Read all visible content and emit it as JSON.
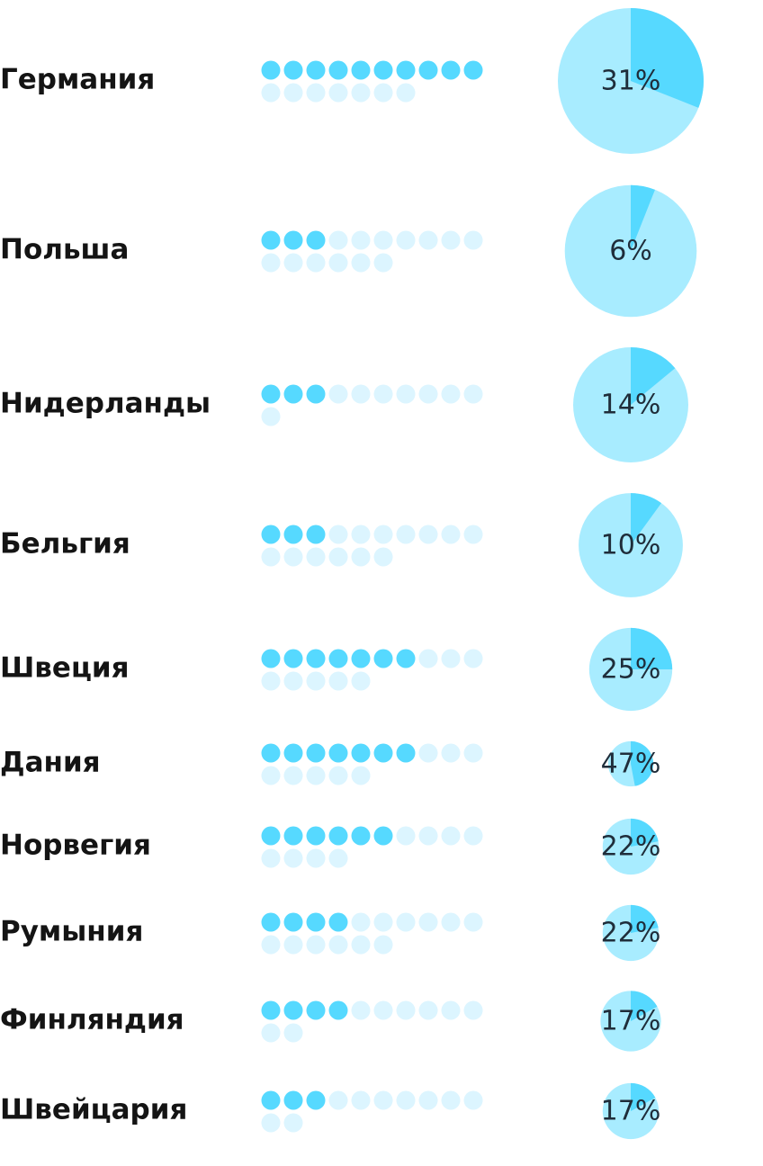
{
  "chart_data": {
    "type": "pictogram-pie",
    "colors": {
      "dot_filled": "#56d9ff",
      "dot_empty": "#dcf5ff",
      "pie_share": "#56d9ff",
      "pie_rest": "#a8ecff",
      "label_text": "#141414",
      "pct_text": "#1f2d3a"
    },
    "rows": [
      {
        "country": "Германия",
        "dots_filled": 10,
        "dots_total": 17,
        "percent": 31,
        "percent_label": "31%",
        "circle_size": 1.0
      },
      {
        "country": "Польша",
        "dots_filled": 3,
        "dots_total": 16,
        "percent": 6,
        "percent_label": "6%",
        "circle_size": 0.905
      },
      {
        "country": "Нидерланды",
        "dots_filled": 3,
        "dots_total": 11,
        "percent": 14,
        "percent_label": "14%",
        "circle_size": 0.79
      },
      {
        "country": "Бельгия",
        "dots_filled": 3,
        "dots_total": 16,
        "percent": 10,
        "percent_label": "10%",
        "circle_size": 0.715
      },
      {
        "country": "Швеция",
        "dots_filled": 7,
        "dots_total": 15,
        "percent": 25,
        "percent_label": "25%",
        "circle_size": 0.57
      },
      {
        "country": "Дания",
        "dots_filled": 7,
        "dots_total": 15,
        "percent": 47,
        "percent_label": "47%",
        "circle_size": 0.31
      },
      {
        "country": "Норвегия",
        "dots_filled": 6,
        "dots_total": 14,
        "percent": 22,
        "percent_label": "22%",
        "circle_size": 0.385
      },
      {
        "country": "Румыния",
        "dots_filled": 4,
        "dots_total": 16,
        "percent": 22,
        "percent_label": "22%",
        "circle_size": 0.385
      },
      {
        "country": "Финляндия",
        "dots_filled": 4,
        "dots_total": 12,
        "percent": 17,
        "percent_label": "17%",
        "circle_size": 0.415
      },
      {
        "country": "Швейцария",
        "dots_filled": 3,
        "dots_total": 12,
        "percent": 17,
        "percent_label": "17%",
        "circle_size": 0.385
      }
    ]
  }
}
